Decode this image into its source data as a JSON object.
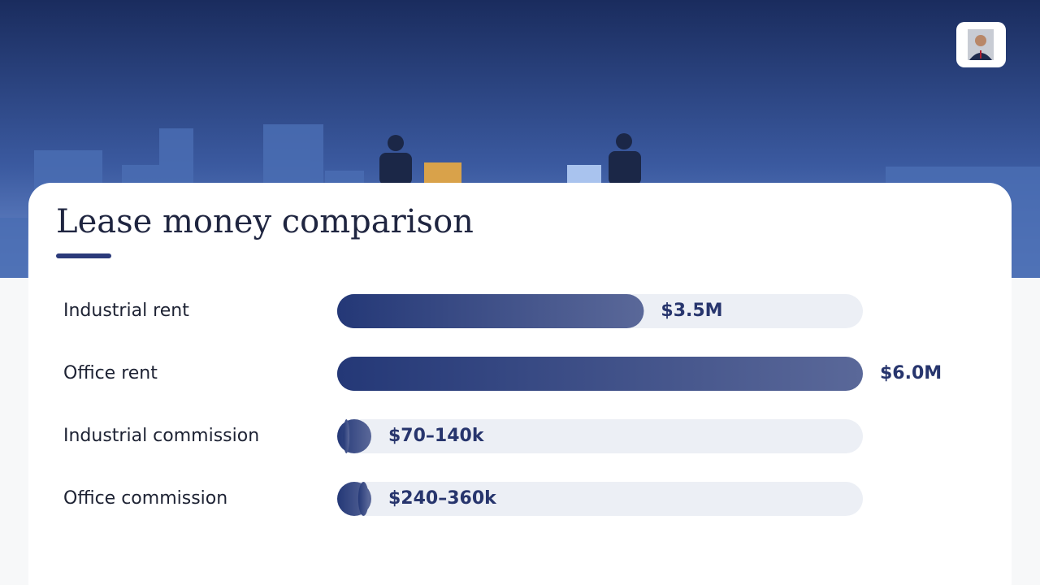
{
  "chart_data": {
    "type": "bar",
    "orientation": "horizontal",
    "title": "Lease money comparison",
    "categories": [
      "Industrial rent",
      "Office rent",
      "Industrial commission",
      "Office commission"
    ],
    "values": [
      3500000,
      6000000,
      [
        70000,
        140000
      ],
      [
        240000,
        360000
      ]
    ],
    "value_labels": [
      "$3.5M",
      "$6.0M",
      "$70–140k",
      "$240–360k"
    ],
    "xlim": [
      0,
      6000000
    ],
    "color": "#2a3c7c",
    "track_color": "#eceff5"
  }
}
